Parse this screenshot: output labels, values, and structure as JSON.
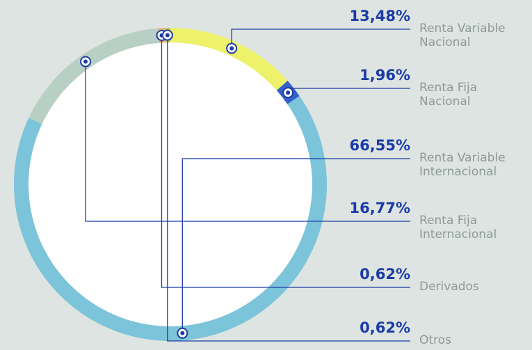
{
  "chart_data": {
    "type": "donut",
    "categories": [
      "Renta Variable Nacional",
      "Renta Fija Nacional",
      "Renta Variable Internacional",
      "Renta Fija Internacional",
      "Derivados",
      "Otros"
    ],
    "values": [
      13.48,
      1.96,
      66.55,
      16.77,
      0.62,
      0.62
    ],
    "value_labels": [
      "13,48%",
      "1,96%",
      "66,55%",
      "16,77%",
      "0,62%",
      "0,62%"
    ],
    "colors": [
      "#eef26a",
      "#3461c9",
      "#7cc4d9",
      "#b8cfc4",
      "#f0a868",
      "#c9c27a"
    ]
  }
}
